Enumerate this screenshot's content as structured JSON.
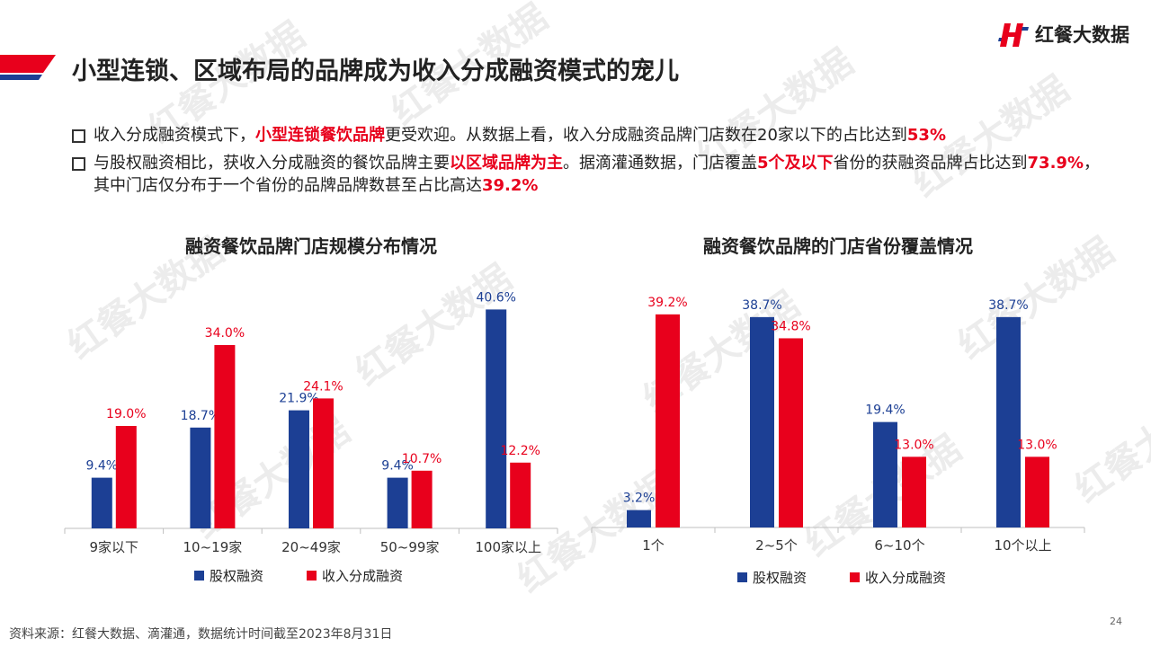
{
  "header": {
    "title": "小型连锁、区域布局的品牌成为收入分成融资模式的宠儿",
    "logo_text": "红餐大数据",
    "accent_red": "#e8001c",
    "accent_blue": "#1c3f94"
  },
  "watermark_text": "红餐大数据",
  "bullets": [
    {
      "parts": [
        {
          "text": "收入分成融资模式下，",
          "hl": false
        },
        {
          "text": "小型连锁餐饮品牌",
          "hl": true
        },
        {
          "text": "更受欢迎。从数据上看，收入分成融资品牌门店数在20家以下的占比达到",
          "hl": false
        },
        {
          "text": "53%",
          "hl": true
        }
      ]
    },
    {
      "parts": [
        {
          "text": "与股权融资相比，获收入分成融资的餐饮品牌主要",
          "hl": false
        },
        {
          "text": "以区域品牌为主",
          "hl": true
        },
        {
          "text": "。据滴灌通数据，门店覆盖",
          "hl": false
        },
        {
          "text": "5个及以下",
          "hl": true
        },
        {
          "text": "省份的获融资品牌占比达到",
          "hl": false
        },
        {
          "text": "73.9%",
          "hl": true
        },
        {
          "text": "，其中门店仅分布于一个省份的品牌品牌数甚至占比高达",
          "hl": false
        },
        {
          "text": "39.2%",
          "hl": true
        }
      ]
    }
  ],
  "chart_data": [
    {
      "type": "bar",
      "title": "融资餐饮品牌门店规模分布情况",
      "categories": [
        "9家以下",
        "10~19家",
        "20~49家",
        "50~99家",
        "100家以上"
      ],
      "series": [
        {
          "name": "股权融资",
          "color": "#1c3f94",
          "values": [
            9.4,
            18.7,
            21.9,
            9.4,
            40.6
          ]
        },
        {
          "name": "收入分成融资",
          "color": "#e8001c",
          "values": [
            19.0,
            34.0,
            24.1,
            10.7,
            12.2
          ]
        }
      ],
      "unit": "%",
      "legend": "bottom"
    },
    {
      "type": "bar",
      "title": "融资餐饮品牌的门店省份覆盖情况",
      "categories": [
        "1个",
        "2~5个",
        "6~10个",
        "10个以上"
      ],
      "series": [
        {
          "name": "股权融资",
          "color": "#1c3f94",
          "values": [
            3.2,
            38.7,
            19.4,
            38.7
          ]
        },
        {
          "name": "收入分成融资",
          "color": "#e8001c",
          "values": [
            39.2,
            34.8,
            13.0,
            13.0
          ]
        }
      ],
      "unit": "%",
      "legend": "bottom"
    }
  ],
  "footer": {
    "source": "资料来源：红餐大数据、滴灌通，数据统计时间截至2023年8月31日",
    "page": "24"
  }
}
